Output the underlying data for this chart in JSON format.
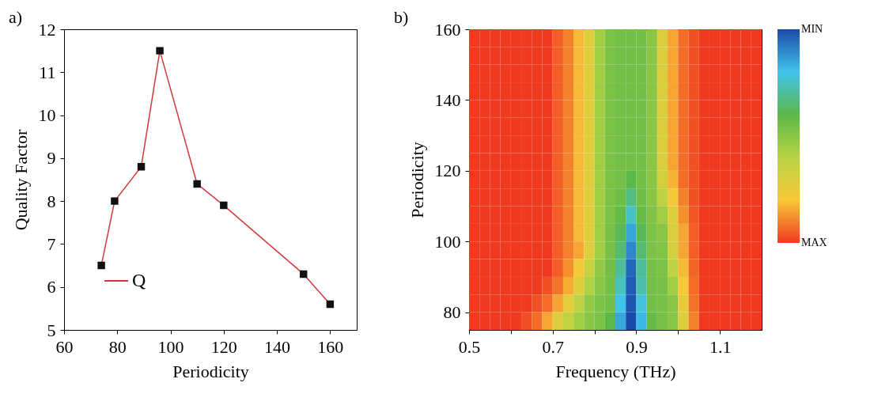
{
  "chart_data": [
    {
      "type": "line",
      "title": "a)",
      "xlabel": "Periodicity",
      "ylabel": "Quality Factor",
      "x": [
        74,
        79,
        89,
        96,
        110,
        120,
        150,
        160
      ],
      "series": [
        {
          "name": "Q",
          "color": "#d03a3a",
          "values": [
            6.5,
            8.0,
            8.8,
            11.5,
            8.4,
            7.9,
            6.3,
            5.6
          ]
        }
      ],
      "xlim": [
        60,
        170
      ],
      "xticks": [
        60,
        80,
        100,
        120,
        140,
        160
      ],
      "ylim": [
        5,
        12
      ],
      "yticks": [
        5,
        6,
        7,
        8,
        9,
        10,
        11,
        12
      ],
      "marker": "square",
      "legend": "bottom left",
      "grid": false
    },
    {
      "type": "heatmap",
      "title": "b)",
      "xlabel": "Frequency (THz)",
      "ylabel": "Periodicity",
      "xlim": [
        0.5,
        1.2
      ],
      "xticks": [
        0.5,
        {
          "value": 0.6,
          "label": null
        },
        0.7,
        {
          "value": 0.8,
          "label": null
        },
        0.9,
        {
          "value": 1.0,
          "label": null
        },
        1.1
      ],
      "ylim": [
        75,
        160
      ],
      "yticks": [
        80,
        100,
        120,
        140,
        160
      ],
      "clim": [
        0,
        1
      ],
      "cticks": [
        {
          "value": 0,
          "label": "MIN"
        },
        {
          "value": 1,
          "label": "MAX"
        }
      ],
      "colors": [
        "#1a4aa8",
        "#40c4ec",
        "#5cb848",
        "#b8d444",
        "#f8c838",
        "#f03a20"
      ],
      "cells": [
        [
          1,
          1,
          1,
          1,
          1,
          1,
          1,
          1,
          0.95,
          0.9,
          0.82,
          0.72,
          0.55,
          0.47,
          0.45,
          0.45,
          0.45,
          0.5,
          0.7,
          0.85,
          0.93,
          0.97,
          1,
          1,
          1,
          1,
          1,
          1
        ],
        [
          1,
          1,
          1,
          1,
          1,
          1,
          1,
          1,
          0.95,
          0.9,
          0.82,
          0.72,
          0.55,
          0.47,
          0.45,
          0.45,
          0.45,
          0.5,
          0.7,
          0.85,
          0.93,
          0.97,
          1,
          1,
          1,
          1,
          1,
          1
        ],
        [
          1,
          1,
          1,
          1,
          1,
          1,
          1,
          1,
          0.95,
          0.9,
          0.82,
          0.72,
          0.55,
          0.47,
          0.45,
          0.45,
          0.45,
          0.5,
          0.7,
          0.85,
          0.93,
          0.97,
          1,
          1,
          1,
          1,
          1,
          1
        ],
        [
          1,
          1,
          1,
          1,
          1,
          1,
          1,
          1,
          0.95,
          0.9,
          0.82,
          0.72,
          0.55,
          0.47,
          0.45,
          0.45,
          0.45,
          0.5,
          0.7,
          0.85,
          0.93,
          0.97,
          1,
          1,
          1,
          1,
          1,
          1
        ],
        [
          1,
          1,
          1,
          1,
          1,
          1,
          1,
          1,
          0.95,
          0.9,
          0.82,
          0.72,
          0.55,
          0.47,
          0.45,
          0.45,
          0.45,
          0.5,
          0.7,
          0.85,
          0.93,
          0.97,
          1,
          1,
          1,
          1,
          1,
          1
        ],
        [
          1,
          1,
          1,
          1,
          1,
          1,
          1,
          1,
          0.95,
          0.9,
          0.82,
          0.72,
          0.55,
          0.47,
          0.45,
          0.45,
          0.45,
          0.5,
          0.7,
          0.85,
          0.93,
          0.97,
          1,
          1,
          1,
          1,
          1,
          1
        ],
        [
          1,
          1,
          1,
          1,
          1,
          1,
          1,
          1,
          0.95,
          0.9,
          0.82,
          0.72,
          0.55,
          0.47,
          0.45,
          0.45,
          0.45,
          0.5,
          0.7,
          0.85,
          0.93,
          0.97,
          1,
          1,
          1,
          1,
          1,
          1
        ],
        [
          1,
          1,
          1,
          1,
          1,
          1,
          1,
          1,
          0.95,
          0.9,
          0.82,
          0.72,
          0.55,
          0.47,
          0.45,
          0.45,
          0.45,
          0.5,
          0.7,
          0.85,
          0.93,
          0.97,
          1,
          1,
          1,
          1,
          1,
          1
        ],
        [
          1,
          1,
          1,
          1,
          1,
          1,
          1,
          1,
          0.95,
          0.9,
          0.82,
          0.72,
          0.55,
          0.47,
          0.45,
          0.4,
          0.45,
          0.5,
          0.68,
          0.83,
          0.93,
          0.97,
          1,
          1,
          1,
          1,
          1,
          1
        ],
        [
          1,
          1,
          1,
          1,
          1,
          1,
          1,
          1,
          0.95,
          0.9,
          0.82,
          0.72,
          0.55,
          0.47,
          0.44,
          0.33,
          0.44,
          0.5,
          0.62,
          0.78,
          0.9,
          0.97,
          1,
          1,
          1,
          1,
          1,
          1
        ],
        [
          1,
          1,
          1,
          1,
          1,
          1,
          1,
          1,
          0.95,
          0.9,
          0.82,
          0.72,
          0.55,
          0.47,
          0.42,
          0.25,
          0.42,
          0.48,
          0.55,
          0.72,
          0.88,
          0.96,
          1,
          1,
          1,
          1,
          1,
          1
        ],
        [
          1,
          1,
          1,
          1,
          1,
          1,
          1,
          1,
          0.95,
          0.9,
          0.82,
          0.72,
          0.55,
          0.46,
          0.38,
          0.15,
          0.38,
          0.47,
          0.5,
          0.7,
          0.85,
          0.95,
          1,
          1,
          1,
          1,
          1,
          1
        ],
        [
          1,
          1,
          1,
          1,
          1,
          1,
          1,
          1,
          0.95,
          0.9,
          0.85,
          0.72,
          0.55,
          0.46,
          0.35,
          0.1,
          0.35,
          0.47,
          0.48,
          0.68,
          0.85,
          0.95,
          1,
          1,
          1,
          1,
          1,
          1
        ],
        [
          1,
          1,
          1,
          1,
          1,
          1,
          1,
          1,
          0.95,
          0.88,
          0.78,
          0.65,
          0.52,
          0.45,
          0.3,
          0.05,
          0.3,
          0.46,
          0.47,
          0.62,
          0.82,
          0.94,
          1,
          1,
          1,
          1,
          1,
          1
        ],
        [
          1,
          1,
          1,
          1,
          1,
          1,
          1,
          0.97,
          0.92,
          0.84,
          0.72,
          0.58,
          0.5,
          0.45,
          0.25,
          0.03,
          0.28,
          0.45,
          0.46,
          0.55,
          0.8,
          0.93,
          1,
          1,
          1,
          1,
          1,
          1
        ],
        [
          1,
          1,
          1,
          1,
          1,
          1,
          0.97,
          0.93,
          0.85,
          0.74,
          0.62,
          0.52,
          0.47,
          0.45,
          0.2,
          0.02,
          0.22,
          0.45,
          0.46,
          0.5,
          0.75,
          0.92,
          1,
          1,
          1,
          1,
          1,
          1
        ],
        [
          1,
          1,
          1,
          1,
          1,
          0.97,
          0.93,
          0.85,
          0.72,
          0.63,
          0.55,
          0.5,
          0.47,
          0.4,
          0.15,
          0,
          0.18,
          0.42,
          0.46,
          0.5,
          0.72,
          0.9,
          1,
          1,
          1,
          1,
          1,
          1
        ]
      ]
    }
  ]
}
